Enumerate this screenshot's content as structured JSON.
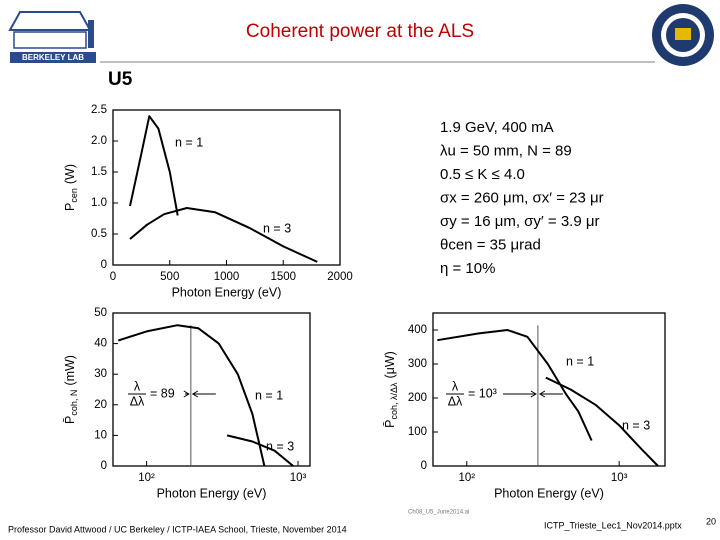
{
  "header": {
    "title": "Coherent power at the ALS",
    "logo_text": "BERKELEY LAB",
    "section": "U5"
  },
  "parameters": [
    "1.9 GeV, 400 mA",
    "λu = 50 mm, N = 89",
    "0.5 ≤ K ≤ 4.0",
    "σx = 260 μm, σx′ = 23 μr",
    "σy = 16 μm, σy′ = 3.9 μr",
    "θcen = 35 μrad",
    "η = 10%"
  ],
  "chart_data": [
    {
      "type": "line",
      "x_label": "Photon Energy (eV)",
      "y_label": "P",
      "y_label_sub": "cen",
      "y_label_unit": "(W)",
      "xscale": "linear",
      "xlim": [
        0,
        2000
      ],
      "ylim": [
        0,
        2.5
      ],
      "xticks": [
        0,
        500,
        1000,
        1500,
        2000
      ],
      "yticks": [
        0,
        0.5,
        {
          "value": 1,
          "label": "1.0"
        },
        1.5,
        {
          "value": 2,
          "label": "2.0"
        },
        2.5
      ],
      "series": [
        {
          "name": "n = 1",
          "color": "#000000",
          "x": [
            150,
            250,
            320,
            400,
            500,
            570
          ],
          "values": [
            0.95,
            1.8,
            2.4,
            2.2,
            1.5,
            0.8
          ]
        },
        {
          "name": "n = 3",
          "color": "#000000",
          "x": [
            150,
            300,
            450,
            650,
            900,
            1200,
            1500,
            1800
          ],
          "values": [
            0.42,
            0.65,
            0.82,
            0.92,
            0.85,
            0.6,
            0.3,
            0.05
          ]
        }
      ]
    },
    {
      "type": "line",
      "x_label": "Photon Energy (eV)",
      "y_label": "P̄",
      "y_label_sub": "coh, N",
      "y_label_unit": "(mW)",
      "xscale": "log",
      "xlim": [
        60,
        1200
      ],
      "ylim": [
        0,
        50
      ],
      "xticks": [
        {
          "value": 100,
          "label": "10²"
        },
        {
          "value": 1000,
          "label": "10³"
        }
      ],
      "yticks": [
        0,
        10,
        20,
        30,
        40,
        50
      ],
      "marker_x": 196,
      "annotation": {
        "numerator": "λ",
        "denominator": "Δλ",
        "text": "= 89"
      },
      "series": [
        {
          "name": "n = 1",
          "color": "#000000",
          "x": [
            65,
            100,
            160,
            220,
            300,
            400,
            500,
            600
          ],
          "values": [
            41,
            44,
            46,
            45,
            40,
            30,
            17,
            0
          ]
        },
        {
          "name": "n = 3",
          "color": "#000000",
          "x": [
            340,
            500,
            700,
            930
          ],
          "values": [
            10,
            8,
            5,
            0
          ]
        }
      ]
    },
    {
      "type": "line",
      "x_label": "Photon Energy (eV)",
      "y_label": "P̄",
      "y_label_sub": "coh, λ/Δλ",
      "y_label_unit": "(μW)",
      "xscale": "log",
      "xlim": [
        60,
        2000
      ],
      "ylim": [
        0,
        450
      ],
      "xticks": [
        {
          "value": 100,
          "label": "10²"
        },
        {
          "value": 1000,
          "label": "10³"
        }
      ],
      "yticks": [
        0,
        100,
        200,
        300,
        400
      ],
      "marker_x": 293,
      "annotation": {
        "numerator": "λ",
        "denominator": "Δλ",
        "text": "= 10³"
      },
      "series": [
        {
          "name": "n = 1",
          "color": "#000000",
          "x": [
            64,
            120,
            185,
            250,
            340,
            450,
            540,
            660
          ],
          "values": [
            370,
            390,
            400,
            380,
            300,
            210,
            160,
            75
          ]
        },
        {
          "name": "n = 3",
          "color": "#000000",
          "x": [
            330,
            480,
            700,
            1000,
            1400,
            1800
          ],
          "values": [
            260,
            225,
            180,
            120,
            50,
            0
          ]
        }
      ]
    }
  ],
  "figure_file": "Ch08_U5_June2014.ai",
  "footer": {
    "left": "Professor David Attwood / UC Berkeley / ICTP-IAEA School, Trieste, November 2014",
    "file": "ICTP_Trieste_Lec1_Nov2014.pptx",
    "page": "20"
  }
}
